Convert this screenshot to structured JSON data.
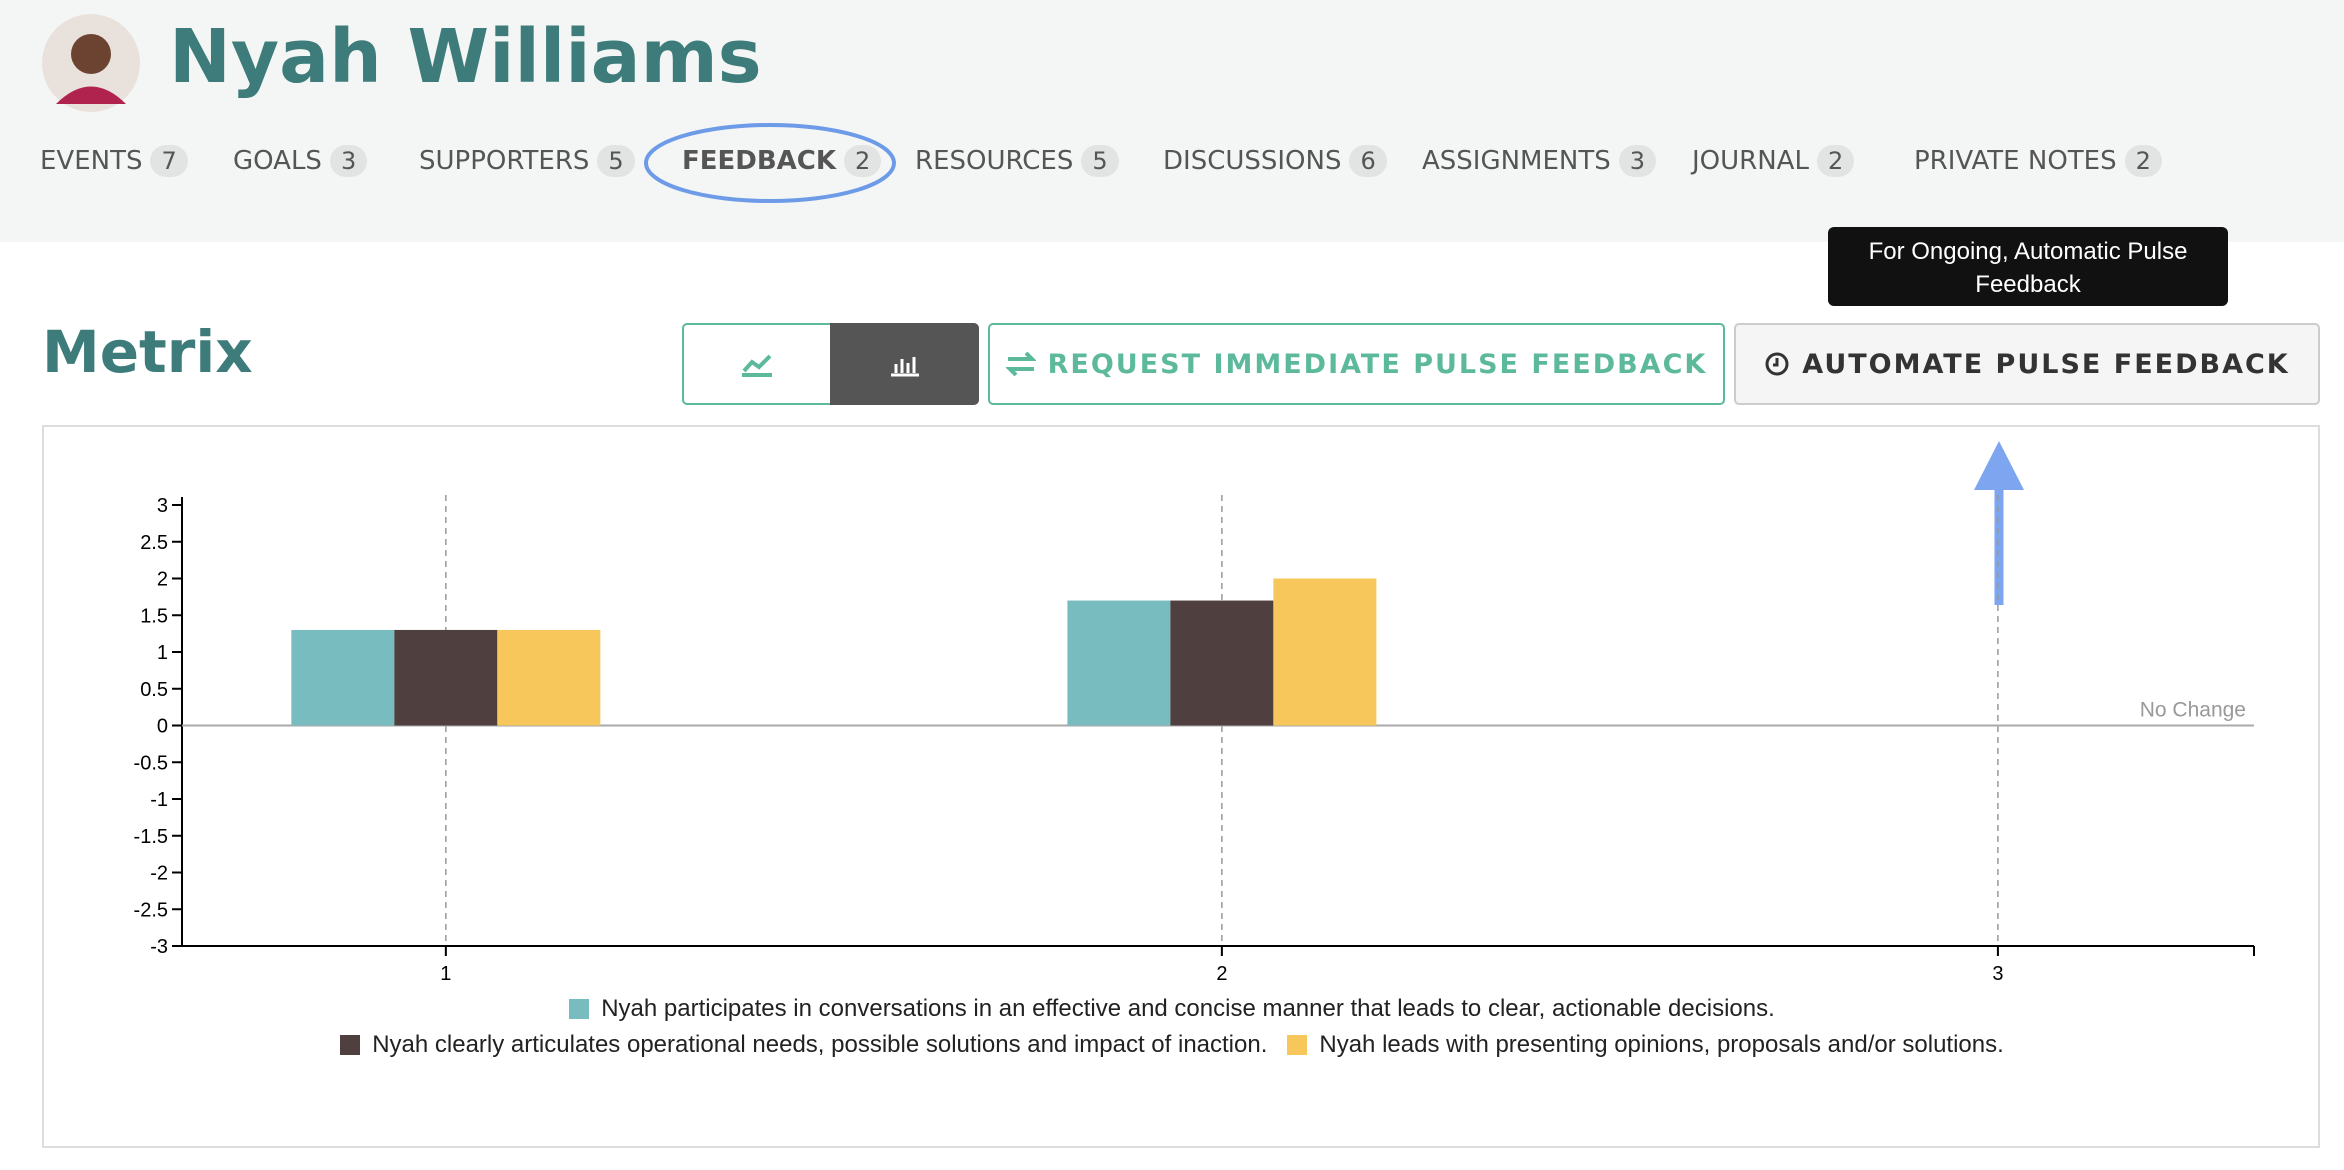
{
  "header": {
    "name": "Nyah Williams"
  },
  "nav": [
    {
      "label": "EVENTS",
      "count": 7
    },
    {
      "label": "GOALS",
      "count": 3
    },
    {
      "label": "SUPPORTERS",
      "count": 5
    },
    {
      "label": "FEEDBACK",
      "count": 2
    },
    {
      "label": "RESOURCES",
      "count": 5
    },
    {
      "label": "DISCUSSIONS",
      "count": 6
    },
    {
      "label": "ASSIGNMENTS",
      "count": 3
    },
    {
      "label": "JOURNAL",
      "count": 2
    },
    {
      "label": "PRIVATE NOTES",
      "count": 2
    }
  ],
  "tooltip": "For Ongoing, Automatic Pulse Feedback",
  "section": {
    "title": "Metrix",
    "request_button": "REQUEST IMMEDIATE PULSE FEEDBACK",
    "automate_button": "AUTOMATE PULSE FEEDBACK"
  },
  "chart_data": {
    "type": "bar",
    "x": [
      1,
      2,
      3
    ],
    "xlim": [
      0.66,
      3.33
    ],
    "xticks": [
      1,
      2,
      3
    ],
    "ylim": [
      -3,
      3
    ],
    "yticks": [
      -3,
      -2.5,
      -2,
      -1.5,
      -1,
      -0.5,
      0,
      0.5,
      1,
      1.5,
      2,
      2.5,
      3
    ],
    "annotation": "No Change",
    "series": [
      {
        "name": "Nyah participates in conversations in an effective and concise manner that leads to clear, actionable decisions.",
        "color": "#79bcc0",
        "values": [
          1.3,
          1.7,
          null
        ]
      },
      {
        "name": "Nyah clearly articulates operational needs, possible solutions and impact of inaction.",
        "color": "#4f3f3f",
        "values": [
          1.3,
          1.7,
          null
        ]
      },
      {
        "name": "Nyah leads with presenting opinions, proposals and/or solutions.",
        "color": "#f7c75c",
        "values": [
          1.3,
          2.0,
          null
        ]
      }
    ]
  }
}
